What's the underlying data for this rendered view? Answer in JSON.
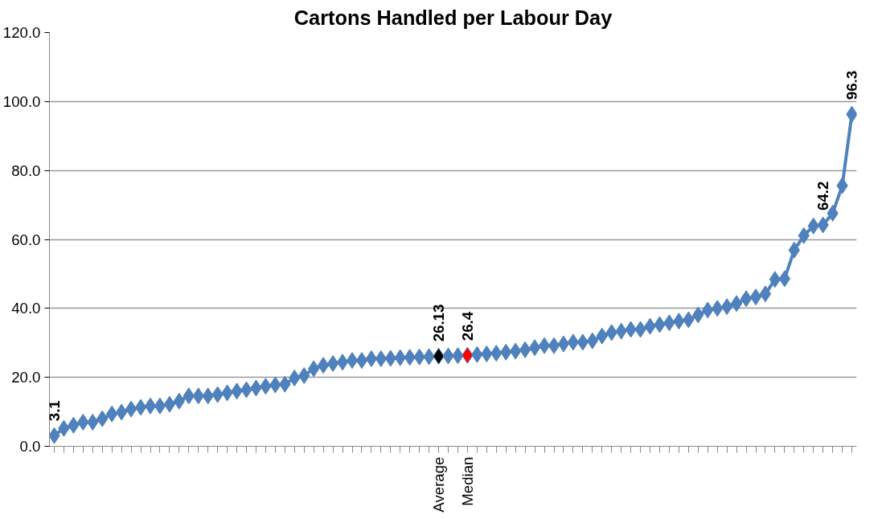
{
  "chart_data": {
    "type": "line",
    "title": "Cartons Handled per Labour Day",
    "categories": [
      null,
      null,
      null,
      null,
      null,
      null,
      null,
      null,
      null,
      null,
      null,
      null,
      null,
      null,
      null,
      null,
      null,
      null,
      null,
      null,
      null,
      null,
      null,
      null,
      null,
      null,
      null,
      null,
      null,
      null,
      null,
      null,
      null,
      null,
      null,
      null,
      null,
      null,
      null,
      null,
      "Average",
      null,
      null,
      "Median",
      null,
      null,
      null,
      null,
      null,
      null,
      null,
      null,
      null,
      null,
      null,
      null,
      null,
      null,
      null,
      null,
      null,
      null,
      null,
      null,
      null,
      null,
      null,
      null,
      null,
      null,
      null,
      null,
      null,
      null,
      null,
      null,
      null,
      null,
      null,
      null,
      null,
      null,
      null,
      null
    ],
    "values": [
      3.1,
      5.2,
      6.1,
      7.0,
      7.0,
      8.0,
      9.4,
      9.9,
      10.8,
      11.3,
      11.7,
      11.7,
      12.2,
      13.1,
      14.6,
      14.6,
      14.6,
      15.0,
      15.5,
      16.0,
      16.4,
      16.9,
      17.4,
      17.8,
      18.0,
      19.8,
      20.5,
      22.5,
      23.5,
      24.0,
      24.4,
      24.9,
      24.9,
      25.4,
      25.4,
      25.5,
      25.7,
      25.8,
      25.9,
      26.0,
      26.13,
      26.2,
      26.3,
      26.4,
      26.6,
      26.8,
      27.0,
      27.3,
      27.6,
      28.0,
      28.6,
      29.2,
      29.2,
      29.7,
      30.2,
      30.2,
      30.6,
      32.0,
      33.0,
      33.4,
      33.9,
      33.9,
      34.8,
      35.3,
      35.8,
      36.3,
      36.7,
      38.1,
      39.5,
      40.0,
      40.5,
      41.4,
      42.8,
      43.3,
      44.2,
      48.4,
      48.6,
      56.9,
      61.1,
      63.9,
      64.2,
      67.6,
      75.6,
      96.3
    ],
    "color": "#4f81bd",
    "colors": [
      "#4f81bd",
      "#4f81bd",
      "#4f81bd",
      "#4f81bd",
      "#4f81bd",
      "#4f81bd",
      "#4f81bd",
      "#4f81bd",
      "#4f81bd",
      "#4f81bd",
      "#4f81bd",
      "#4f81bd",
      "#4f81bd",
      "#4f81bd",
      "#4f81bd",
      "#4f81bd",
      "#4f81bd",
      "#4f81bd",
      "#4f81bd",
      "#4f81bd",
      "#4f81bd",
      "#4f81bd",
      "#4f81bd",
      "#4f81bd",
      "#4f81bd",
      "#4f81bd",
      "#4f81bd",
      "#4f81bd",
      "#4f81bd",
      "#4f81bd",
      "#4f81bd",
      "#4f81bd",
      "#4f81bd",
      "#4f81bd",
      "#4f81bd",
      "#4f81bd",
      "#4f81bd",
      "#4f81bd",
      "#4f81bd",
      "#4f81bd",
      "#000000",
      "#4f81bd",
      "#4f81bd",
      "#ff0000",
      "#4f81bd",
      "#4f81bd",
      "#4f81bd",
      "#4f81bd",
      "#4f81bd",
      "#4f81bd",
      "#4f81bd",
      "#4f81bd",
      "#4f81bd",
      "#4f81bd",
      "#4f81bd",
      "#4f81bd",
      "#4f81bd",
      "#4f81bd",
      "#4f81bd",
      "#4f81bd",
      "#4f81bd",
      "#4f81bd",
      "#4f81bd",
      "#4f81bd",
      "#4f81bd",
      "#4f81bd",
      "#4f81bd",
      "#4f81bd",
      "#4f81bd",
      "#4f81bd",
      "#4f81bd",
      "#4f81bd",
      "#4f81bd",
      "#4f81bd",
      "#4f81bd",
      "#4f81bd",
      "#4f81bd",
      "#4f81bd",
      "#4f81bd",
      "#4f81bd",
      "#4f81bd",
      "#4f81bd",
      "#4f81bd",
      "#4f81bd"
    ],
    "value_labels": [
      "3.1",
      null,
      null,
      null,
      null,
      null,
      null,
      null,
      null,
      null,
      null,
      null,
      null,
      null,
      null,
      null,
      null,
      null,
      null,
      null,
      null,
      null,
      null,
      null,
      null,
      null,
      null,
      null,
      null,
      null,
      null,
      null,
      null,
      null,
      null,
      null,
      null,
      null,
      null,
      null,
      "26.13",
      null,
      null,
      "26.4",
      null,
      null,
      null,
      null,
      null,
      null,
      null,
      null,
      null,
      null,
      null,
      null,
      null,
      null,
      null,
      null,
      null,
      null,
      null,
      null,
      null,
      null,
      null,
      null,
      null,
      null,
      null,
      null,
      null,
      null,
      null,
      null,
      null,
      null,
      null,
      null,
      "64.2",
      null,
      null,
      "96.3"
    ],
    "ylim": [
      0,
      120
    ],
    "yticks": [
      {
        "value": 0,
        "label": "0.0"
      },
      {
        "value": 20,
        "label": "20.0"
      },
      {
        "value": 40,
        "label": "40.0"
      },
      {
        "value": 60,
        "label": "60.0"
      },
      {
        "value": 80,
        "label": "80.0"
      },
      {
        "value": 100,
        "label": "100.0"
      },
      {
        "value": 120,
        "label": "120.0"
      }
    ],
    "grid": "y",
    "marker": "diamond",
    "line_style": "solid"
  }
}
